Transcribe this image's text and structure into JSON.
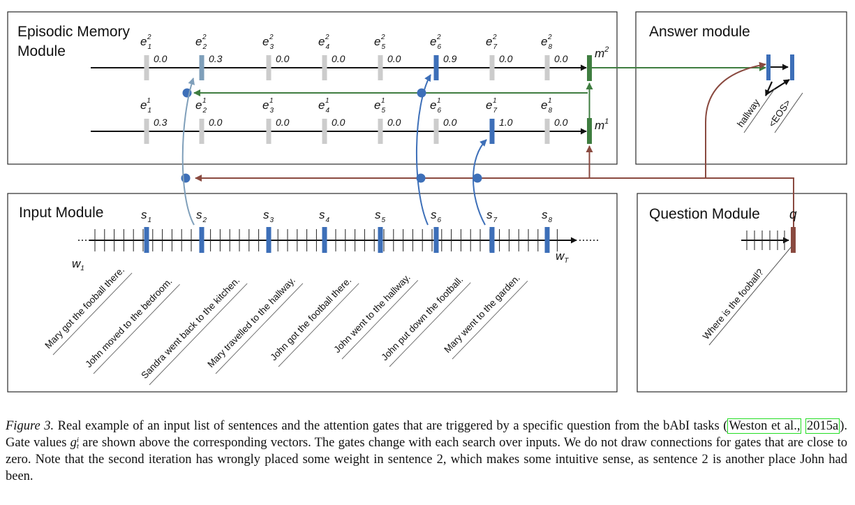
{
  "modules": {
    "episodic": [
      "Episodic Memory",
      "Module"
    ],
    "answer": "Answer module",
    "input": "Input Module",
    "question": "Question Module"
  },
  "gates": {
    "iteration2": [
      "0.0",
      "0.3",
      "0.0",
      "0.0",
      "0.0",
      "0.9",
      "0.0",
      "0.0"
    ],
    "iteration1": [
      "0.3",
      "0.0",
      "0.0",
      "0.0",
      "0.0",
      "0.0",
      "1.0",
      "0.0"
    ]
  },
  "memory_labels": {
    "m2": "m",
    "m2_sup": "2",
    "m1": "m",
    "m1_sup": "1"
  },
  "episode_label": "e",
  "sentence_label": "s",
  "word_label": "w",
  "word_first_sub": "1",
  "word_last_sub": "T",
  "question_symbol": "q",
  "sentences": [
    "Mary got the fooball there.",
    "John moved to the bedroom.",
    "Sandra went back to the kitchen.",
    "Mary travelled to the hallway.",
    "John got the football there.",
    "John went to the hallway.",
    "John put down the football.",
    "Mary went to the garden."
  ],
  "question": "Where is the fooball?",
  "answers": [
    "hallway",
    "<EOS>"
  ],
  "colors": {
    "blue": "#3d6fb8",
    "light_blue": "#7f9fba",
    "green": "#3f7d40",
    "brown": "#8a4a40",
    "gray": "#cccccc"
  },
  "caption": {
    "figure": "Figure 3.",
    "part1": " Real example of an input list of sentences and the attention gates that are triggered by a specific question from the bAbI tasks (",
    "cite1": "Weston et al.,",
    "cite2": "2015a",
    "part2": "). Gate values ",
    "gate_symbol": "g",
    "gate_sup": "i",
    "gate_sub": "t",
    "part3": " are shown above the corresponding vectors. The gates change with each search over inputs. We do not draw connections for gates that are close to zero. Note that the second iteration has wrongly placed some weight in sentence 2, which makes some intuitive sense, as sentence 2 is another place John had been."
  }
}
